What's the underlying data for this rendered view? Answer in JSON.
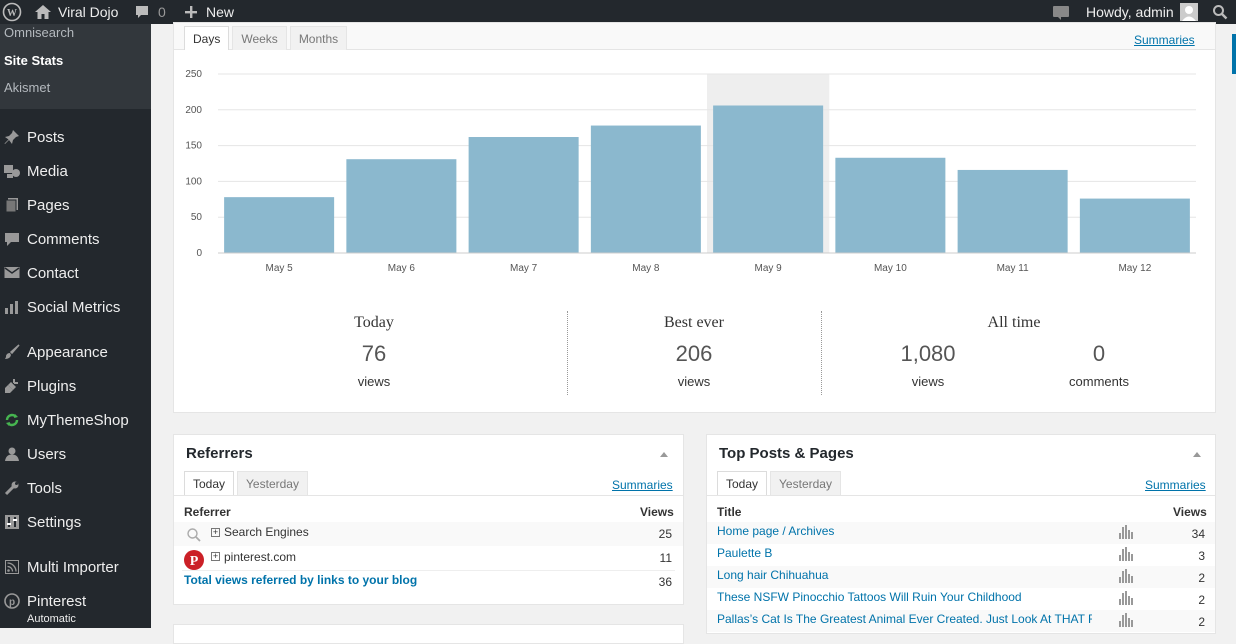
{
  "adminbar": {
    "site_name": "Viral Dojo",
    "comments_count": "0",
    "new_label": "New",
    "howdy": "Howdy, admin"
  },
  "sidebar": {
    "submenu": [
      "Omnisearch",
      "Site Stats",
      "Akismet"
    ],
    "items": [
      {
        "label": "Posts",
        "icon": "pin-icon"
      },
      {
        "label": "Media",
        "icon": "media-icon"
      },
      {
        "label": "Pages",
        "icon": "pages-icon"
      },
      {
        "label": "Comments",
        "icon": "comment-icon"
      },
      {
        "label": "Contact",
        "icon": "mail-icon"
      },
      {
        "label": "Social Metrics",
        "icon": "chart-icon"
      },
      {
        "label": "Appearance",
        "icon": "brush-icon"
      },
      {
        "label": "Plugins",
        "icon": "plug-icon"
      },
      {
        "label": "MyThemeShop",
        "icon": "refresh-icon"
      },
      {
        "label": "Users",
        "icon": "user-icon"
      },
      {
        "label": "Tools",
        "icon": "wrench-icon"
      },
      {
        "label": "Settings",
        "icon": "settings-icon"
      },
      {
        "label": "Multi Importer",
        "icon": "rss-icon"
      },
      {
        "label": "Pinterest",
        "icon": "pinterest-icon"
      }
    ],
    "pinterest_sub": "Automatic"
  },
  "stats": {
    "tabs": [
      "Days",
      "Weeks",
      "Months"
    ],
    "summaries": "Summaries",
    "today_title": "Today",
    "today_value": "76",
    "today_label": "views",
    "best_title": "Best ever",
    "best_value": "206",
    "best_label": "views",
    "alltime_title": "All time",
    "alltime_views": "1,080",
    "alltime_views_label": "views",
    "alltime_comments": "0",
    "alltime_comments_label": "comments"
  },
  "chart_data": {
    "type": "bar",
    "categories": [
      "May 5",
      "May 6",
      "May 7",
      "May 8",
      "May 9",
      "May 10",
      "May 11",
      "May 12"
    ],
    "values": [
      78,
      131,
      162,
      178,
      206,
      133,
      116,
      76
    ],
    "highlighted_category": "May 9",
    "yticks": [
      "0",
      "50",
      "100",
      "150",
      "200",
      "250"
    ],
    "ylim": [
      0,
      250
    ],
    "bar_color": "#8bb8ce",
    "grid": true
  },
  "referrers": {
    "title": "Referrers",
    "tabs": [
      "Today",
      "Yesterday"
    ],
    "summaries": "Summaries",
    "col_referrer": "Referrer",
    "col_views": "Views",
    "rows": [
      {
        "name": "Search Engines",
        "views": "25",
        "icon": "search-icon"
      },
      {
        "name": "pinterest.com",
        "views": "11",
        "icon": "pinterest-icon"
      }
    ],
    "total_label": "Total views referred by links to your blog",
    "total_value": "36"
  },
  "top_posts": {
    "title": "Top Posts & Pages",
    "tabs": [
      "Today",
      "Yesterday"
    ],
    "summaries": "Summaries",
    "col_title": "Title",
    "col_views": "Views",
    "rows": [
      {
        "title": "Home page / Archives",
        "views": "34"
      },
      {
        "title": "Paulette B",
        "views": "3"
      },
      {
        "title": "Long hair Chihuahua",
        "views": "2"
      },
      {
        "title": "These NSFW Pinocchio Tattoos Will Ruin Your Childhood",
        "views": "2"
      },
      {
        "title": "Pallas’s Cat Is The Greatest Animal Ever Created. Just Look At THAT FAC…",
        "views": "2"
      }
    ]
  }
}
